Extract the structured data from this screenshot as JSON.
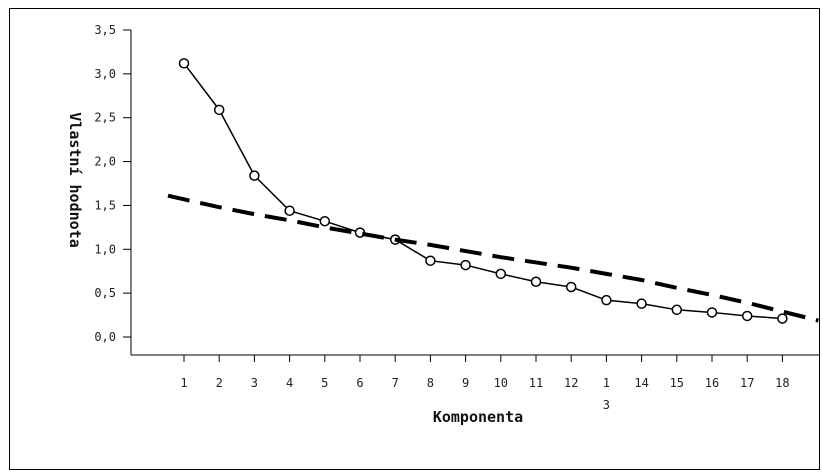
{
  "chart_data": {
    "type": "line",
    "xlabel": "Komponenta",
    "ylabel": "Vlastní hodnota",
    "ylim": [
      0,
      3.5
    ],
    "y_ticks": [
      "0,0",
      "0,5",
      "1,0",
      "1,5",
      "2,0",
      "2,5",
      "3,0",
      "3,5"
    ],
    "categories": [
      "1",
      "2",
      "3",
      "4",
      "5",
      "6",
      "7",
      "8",
      "9",
      "10",
      "11",
      "12",
      "1\n3",
      "14",
      "15",
      "16",
      "17",
      "18"
    ],
    "series": [
      {
        "style": "solid-with-circle-markers",
        "values": [
          3.12,
          2.59,
          1.84,
          1.44,
          1.32,
          1.19,
          1.11,
          0.87,
          0.82,
          0.72,
          0.63,
          0.57,
          0.42,
          0.38,
          0.31,
          0.28,
          0.24,
          0.21
        ]
      },
      {
        "style": "dashed-reference",
        "values": [
          1.57,
          1.48,
          1.4,
          1.33,
          1.25,
          1.18,
          1.11,
          1.05,
          0.98,
          0.91,
          0.85,
          0.79,
          0.72,
          0.65,
          0.56,
          0.48,
          0.39,
          0.29
        ]
      }
    ],
    "colors": {
      "line": "#000000",
      "axis": "#000000"
    },
    "grid": false
  }
}
